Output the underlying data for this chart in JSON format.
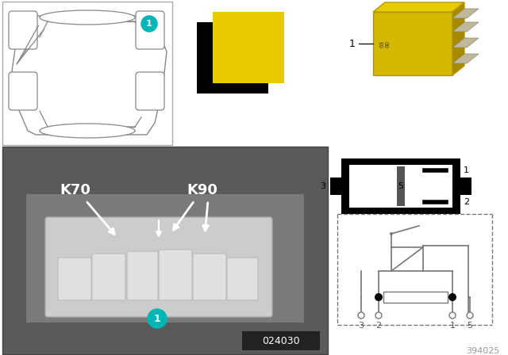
{
  "bg_color": "#ffffff",
  "car_outline_color": "#888888",
  "teal_circle_color": "#00b5b5",
  "relay_yellow": "#d4b800",
  "relay_yellow_bright": "#e8ca00",
  "badge_024030": "024030",
  "badge_394025": "394025",
  "label_k70": "K70",
  "label_k90": "K90",
  "photo_bg": "#6a6a6a",
  "schematic_color": "#777777"
}
